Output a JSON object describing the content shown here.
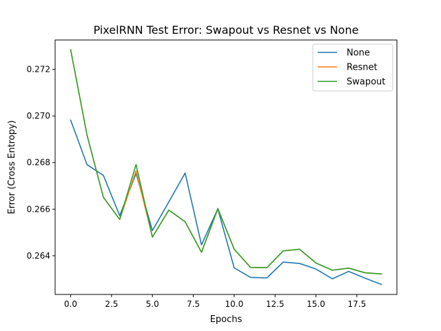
{
  "chart_data": {
    "type": "line",
    "title": "PixelRNN Test Error: Swapout vs Resnet vs None",
    "xlabel": "Epochs",
    "ylabel": "Error (Cross Entropy)",
    "xlim": [
      -0.95,
      19.95
    ],
    "ylim": [
      0.26234,
      0.27326
    ],
    "xticks": [
      0,
      2.5,
      5,
      7.5,
      10,
      12.5,
      15,
      17.5
    ],
    "xtick_labels": [
      "0.0",
      "2.5",
      "5.0",
      "7.5",
      "10.0",
      "12.5",
      "15.0",
      "17.5"
    ],
    "yticks": [
      0.264,
      0.266,
      0.268,
      0.27,
      0.272
    ],
    "ytick_labels": [
      "0.264",
      "0.266",
      "0.268",
      "0.270",
      "0.272"
    ],
    "grid": false,
    "legend_position": "top-right",
    "x": [
      0,
      1,
      2,
      3,
      4,
      5,
      6,
      7,
      8,
      9,
      10,
      11,
      12,
      13,
      14,
      15,
      16,
      17,
      18,
      19
    ],
    "series": [
      {
        "name": "None",
        "color": "#1f77b4",
        "values": [
          0.26982,
          0.26791,
          0.26745,
          0.26572,
          0.26753,
          0.26508,
          0.26631,
          0.26755,
          0.26447,
          0.26601,
          0.26348,
          0.26307,
          0.26305,
          0.26373,
          0.26367,
          0.26343,
          0.26301,
          0.26333,
          0.26304,
          0.26277
        ]
      },
      {
        "name": "Resnet",
        "color": "#ff7f0e",
        "values": [
          0.27284,
          0.26918,
          0.26651,
          0.26556,
          0.26765,
          0.2648,
          0.26596,
          0.26546,
          0.26415,
          0.26601,
          0.26428,
          0.2635,
          0.26349,
          0.26421,
          0.26428,
          0.26369,
          0.26338,
          0.26347,
          0.26327,
          0.26322
        ]
      },
      {
        "name": "Swapout",
        "color": "#2ca02c",
        "values": [
          0.27284,
          0.26918,
          0.26651,
          0.26556,
          0.26792,
          0.2648,
          0.26596,
          0.26546,
          0.26415,
          0.26603,
          0.26428,
          0.2635,
          0.26349,
          0.26421,
          0.26428,
          0.26369,
          0.26338,
          0.26347,
          0.26327,
          0.26322
        ]
      }
    ]
  }
}
